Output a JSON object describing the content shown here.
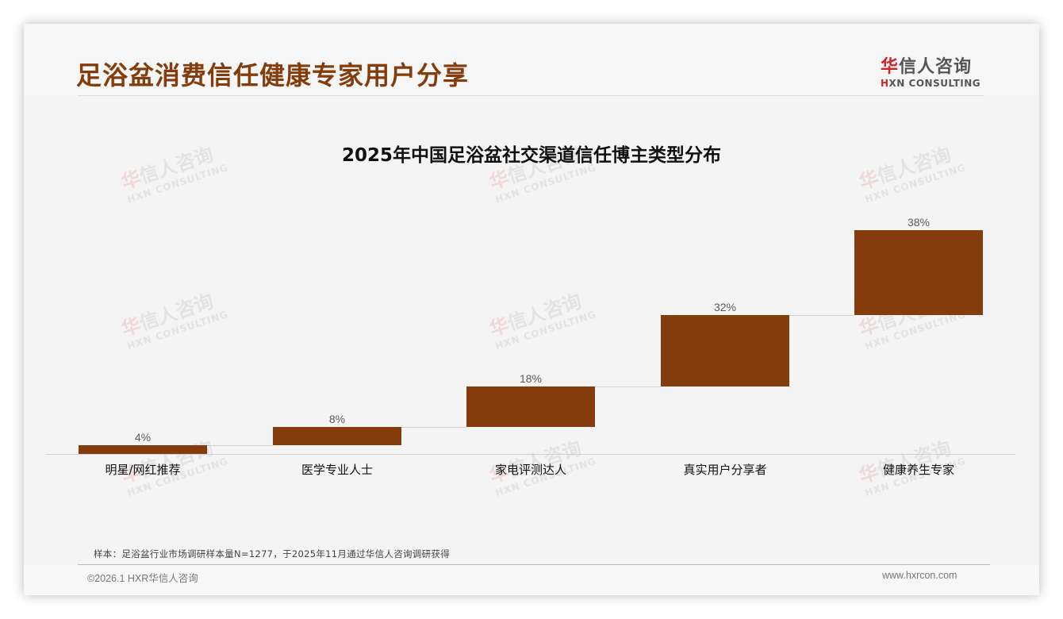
{
  "page": {
    "title": "足浴盆消费信任健康专家用户分享",
    "logo": {
      "cn_accent": "华",
      "cn_rest": "信人咨询",
      "en_accent": "H",
      "en_rest": "XN CONSULTING"
    },
    "watermark": {
      "cn_accent": "华",
      "cn_rest": "信人咨询",
      "en": "HXN CONSULTING"
    }
  },
  "chart_data": {
    "type": "waterfall",
    "title": "2025年中国足浴盆社交渠道信任博主类型分布",
    "categories": [
      "明星/网红推荐",
      "医学专业人士",
      "家电评测达人",
      "真实用户分享者",
      "健康养生专家"
    ],
    "values": [
      4,
      8,
      18,
      32,
      38
    ],
    "value_labels": [
      "4%",
      "8%",
      "18%",
      "32%",
      "38%"
    ],
    "unit": "%",
    "xlabel": "",
    "ylabel": "",
    "grid": false,
    "legend": null,
    "bar_color": "#843c0c",
    "connectors": true
  },
  "footer": {
    "source_note": "样本：足浴盆行业市场调研样本量N=1277，于2025年11月通过华信人咨询调研获得",
    "copyright": "©2026.1 HXR华信人咨询",
    "website": "www.hxrcon.com"
  },
  "colors": {
    "title": "#843c0c",
    "bar": "#843c0c",
    "logo_accent": "#d0232a"
  }
}
